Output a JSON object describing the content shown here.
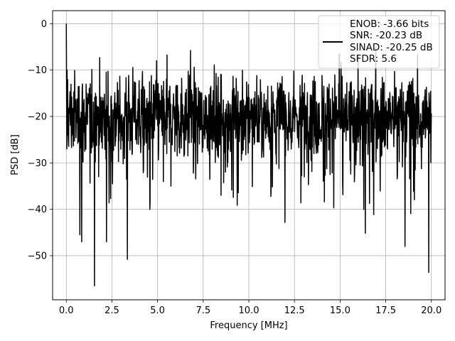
{
  "chart_data": {
    "type": "line",
    "xlabel": "Frequency [MHz]",
    "ylabel": "PSD [dB]",
    "xlim": [
      -0.75,
      20.75
    ],
    "ylim": [
      -59.5,
      2.8
    ],
    "x_ticks": [
      0.0,
      2.5,
      5.0,
      7.5,
      10.0,
      12.5,
      15.0,
      17.5,
      20.0
    ],
    "x_tick_labels": [
      "0.0",
      "2.5",
      "5.0",
      "7.5",
      "10.0",
      "12.5",
      "15.0",
      "17.5",
      "20.0"
    ],
    "y_ticks": [
      0,
      -10,
      -20,
      -30,
      -40,
      -50
    ],
    "y_tick_labels": [
      "0",
      "−10",
      "−20",
      "−30",
      "−40",
      "−50"
    ],
    "grid": true,
    "legend_position": "top-right",
    "series_color": "#000000",
    "legend_lines": [
      "ENOB: -3.66 bits",
      "SNR: -20.23 dB",
      "SINAD: -20.25 dB",
      "SFDR: 5.6"
    ],
    "series": [
      {
        "x_start": 0.0,
        "x_end": 20.0,
        "n_points": 1400,
        "noise_floor_db": -20,
        "peak_at_x0_db": 0,
        "notable_peaks": [
          {
            "x": 0.0,
            "y": 0.0
          },
          {
            "x": 6.8,
            "y": -5.8
          },
          {
            "x": 16.95,
            "y": -5.2
          },
          {
            "x": 14.95,
            "y": -6.5
          }
        ],
        "notable_dips": [
          {
            "x": 1.55,
            "y": -56.5
          },
          {
            "x": 3.35,
            "y": -50.8
          },
          {
            "x": 19.85,
            "y": -53.6
          },
          {
            "x": 18.55,
            "y": -48.0
          },
          {
            "x": 0.85,
            "y": -47.0
          },
          {
            "x": 0.75,
            "y": -45.5
          },
          {
            "x": 2.2,
            "y": -47.0
          }
        ]
      }
    ]
  }
}
